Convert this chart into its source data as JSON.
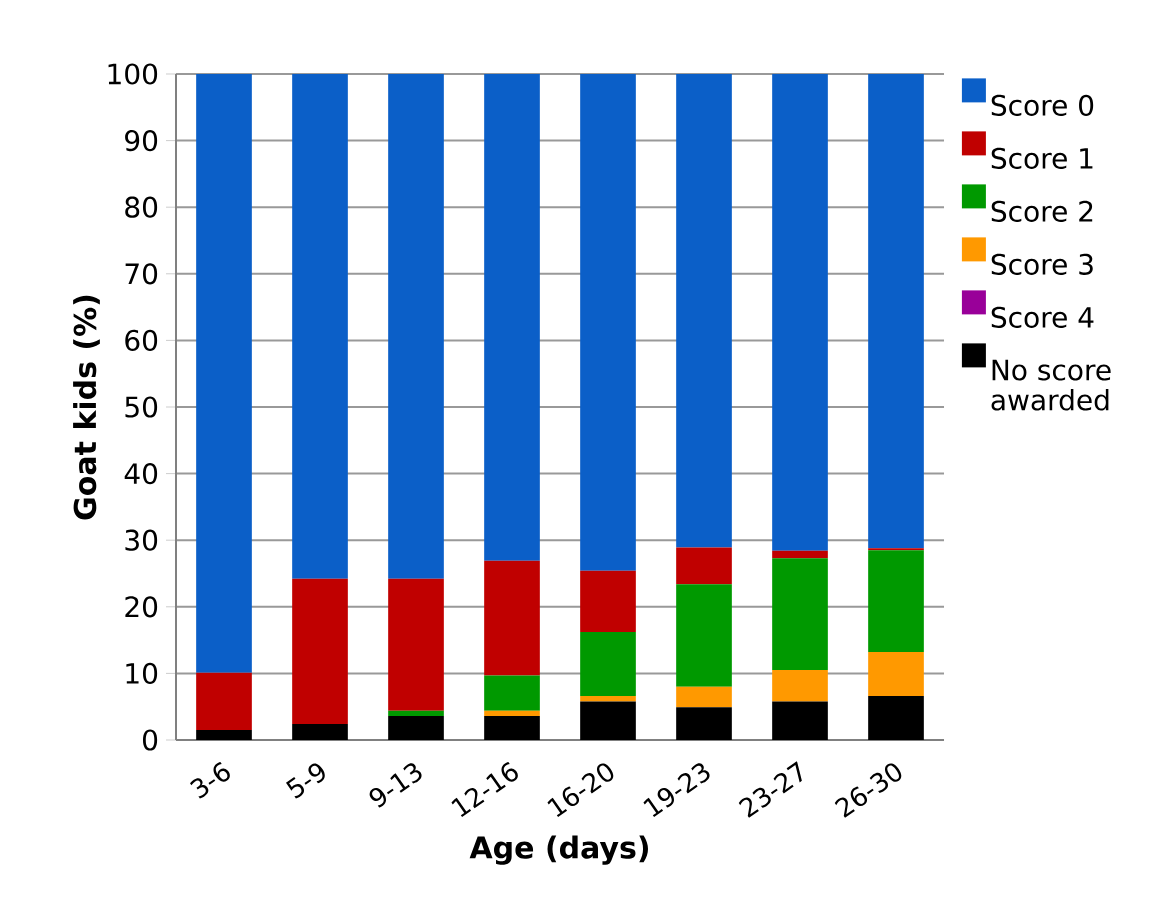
{
  "chart_data": {
    "type": "bar",
    "stacked": true,
    "xlabel": "Age (days)",
    "ylabel": "Goat kids (%)",
    "categories": [
      "3-6",
      "5-9",
      "9-13",
      "12-16",
      "16-20",
      "19-23",
      "23-27",
      "26-30"
    ],
    "series": [
      {
        "name": "No score awarded",
        "color": "#000000",
        "values": [
          1.5,
          2.4,
          3.6,
          3.6,
          5.8,
          4.9,
          5.8,
          6.6
        ]
      },
      {
        "name": "Score 4",
        "color": "#990099",
        "values": [
          0,
          0,
          0,
          0,
          0,
          0,
          0,
          0
        ]
      },
      {
        "name": "Score 3",
        "color": "#ff9900",
        "values": [
          0,
          0,
          0,
          0.8,
          0.8,
          3.1,
          4.7,
          6.6
        ]
      },
      {
        "name": "Score 2",
        "color": "#009900",
        "values": [
          0,
          0,
          0.8,
          5.3,
          9.6,
          15.4,
          16.8,
          15.3
        ]
      },
      {
        "name": "Score 1",
        "color": "#c00000",
        "values": [
          8.6,
          21.8,
          19.8,
          17.2,
          9.2,
          5.5,
          1.1,
          0.3
        ]
      },
      {
        "name": "Score 0",
        "color": "#0b5fc8",
        "values": [
          89.9,
          75.8,
          75.8,
          73.1,
          74.6,
          71.1,
          71.6,
          71.2
        ]
      }
    ],
    "ylim": [
      0,
      100
    ],
    "yticks": [
      0,
      10,
      20,
      30,
      40,
      50,
      60,
      70,
      80,
      90,
      100
    ],
    "grid": "y",
    "legend": "right"
  }
}
